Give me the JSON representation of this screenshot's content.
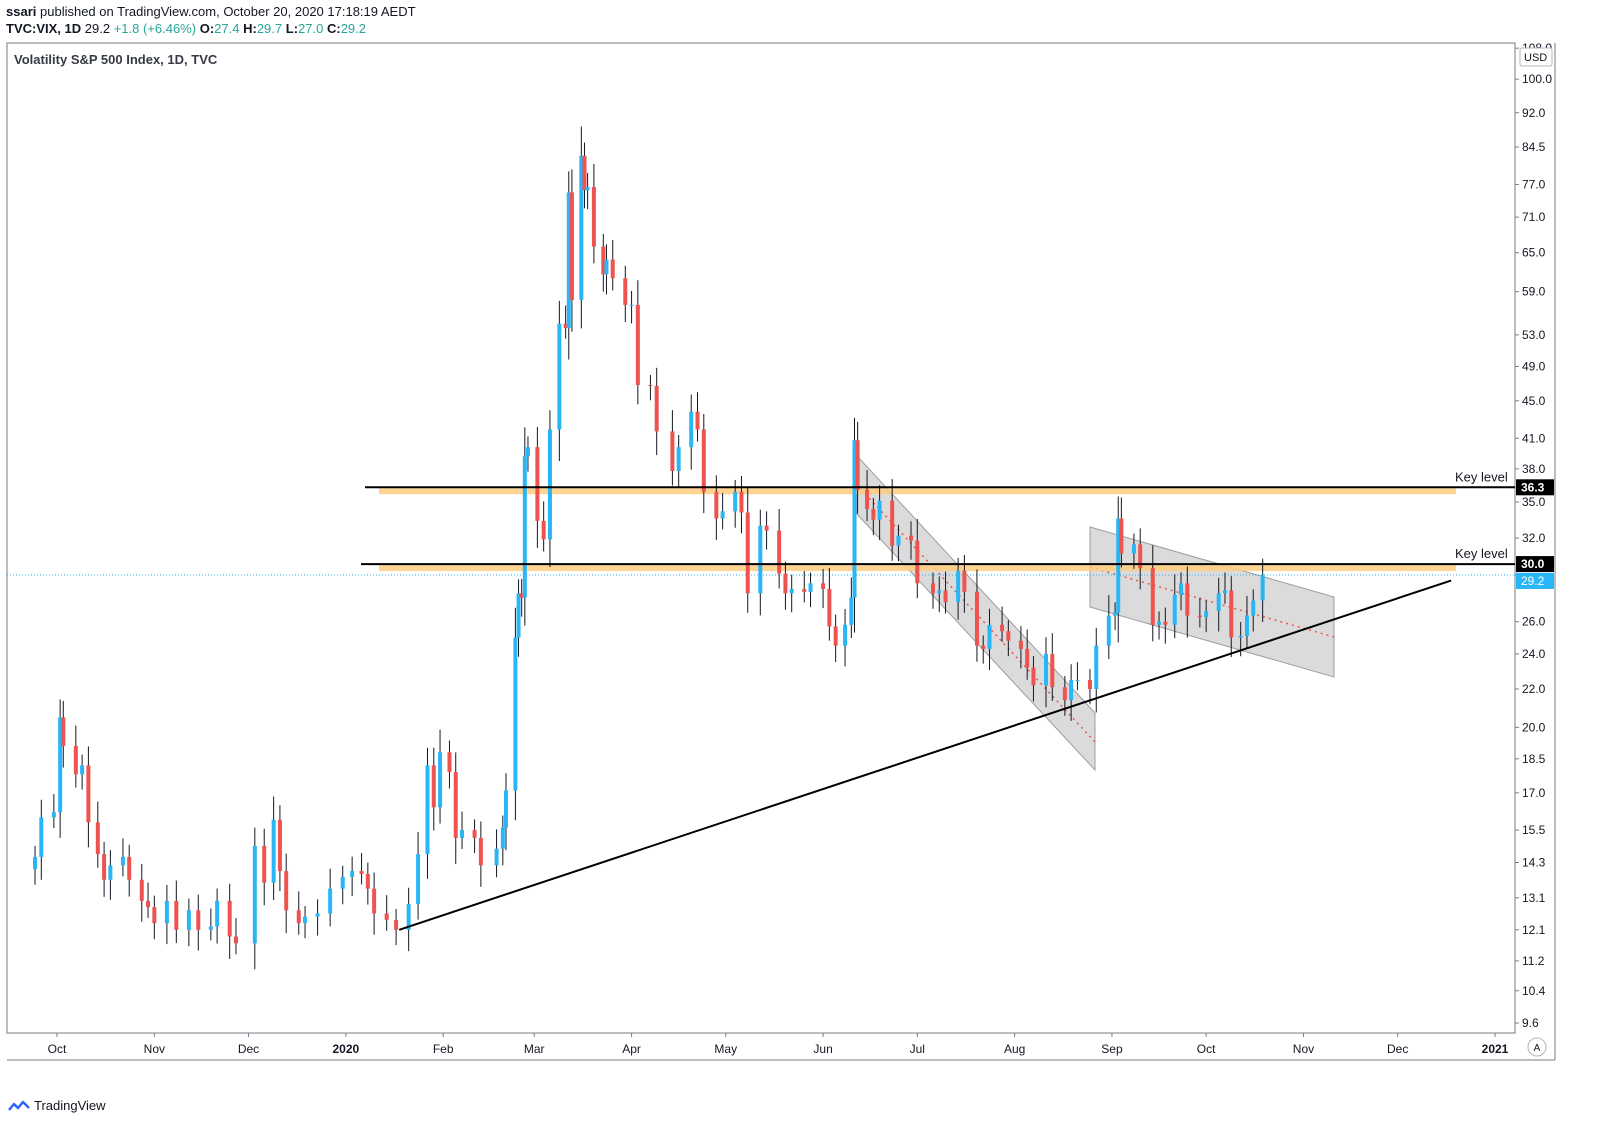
{
  "header": {
    "publisher": "ssari",
    "published_text": "published on TradingView.com, October 20, 2020 17:18:19 AEDT",
    "symbol": "TVC:VIX, 1D",
    "last": "29.2",
    "change": "+1.8 (+6.46%)",
    "o_label": "O:",
    "o_value": "27.4",
    "h_label": "H:",
    "h_value": "29.7",
    "l_label": "L:",
    "l_value": "27.0",
    "c_label": "C:",
    "c_value": "29.2"
  },
  "pane_title": "Volatility S&P 500 Index, 1D, TVC",
  "footer": {
    "brand": "TradingView"
  },
  "colors": {
    "up": "#29b6f6",
    "down": "#ef5350",
    "key_band": "#ffcc80",
    "channel": "#bdbdbd",
    "price_tag": "#29b6f6"
  },
  "chart_data": {
    "type": "candlestick",
    "scale": "log",
    "currency": "USD",
    "y_ticks": [
      9.6,
      10.4,
      11.2,
      12.1,
      13.1,
      14.3,
      15.5,
      17.0,
      18.5,
      20.0,
      22.0,
      24.0,
      26.0,
      29.2,
      32.0,
      35.0,
      38.0,
      41.0,
      45.0,
      49.0,
      53.0,
      59.0,
      65.0,
      71.0,
      77.0,
      84.5,
      92.0,
      100.0,
      108.0
    ],
    "y_tick_labels": [
      "9.6",
      "10.4",
      "11.2",
      "12.1",
      "13.1",
      "14.3",
      "15.5",
      "17.0",
      "18.5",
      "20.0",
      "22.0",
      "24.0",
      "26.0",
      "29.2",
      "32.0",
      "35.0",
      "38.0",
      "41.0",
      "45.0",
      "49.0",
      "53.0",
      "59.0",
      "65.0",
      "71.0",
      "77.0",
      "84.5",
      "92.0",
      "100.0",
      "108.0"
    ],
    "x_labels": [
      "Oct",
      "Nov",
      "Dec",
      "2020",
      "Feb",
      "Mar",
      "Apr",
      "May",
      "Jun",
      "Jul",
      "Aug",
      "Sep",
      "Oct",
      "Nov",
      "Dec",
      "2021"
    ],
    "x_label_days": [
      0,
      31,
      61,
      92,
      123,
      152,
      183,
      213,
      244,
      274,
      305,
      336,
      366,
      397,
      427,
      458
    ],
    "key_levels": [
      {
        "label": "Key level",
        "value": 36.3,
        "tag": "36.3"
      },
      {
        "label": "Key level",
        "value": 30.0,
        "tag": "30.0"
      }
    ],
    "last_price": {
      "value": 29.2,
      "tag": "29.2"
    },
    "trendline": [
      {
        "date": "2020-01-18",
        "y": 12.1
      },
      {
        "date": "2020-12-18",
        "y": 28.8
      }
    ],
    "closes": [
      [
        "2019-09-24",
        14.5
      ],
      [
        "2019-09-26",
        16.0
      ],
      [
        "2019-09-30",
        16.2
      ],
      [
        "2019-10-02",
        20.5
      ],
      [
        "2019-10-03",
        19.1
      ],
      [
        "2019-10-07",
        17.8
      ],
      [
        "2019-10-09",
        18.2
      ],
      [
        "2019-10-11",
        15.8
      ],
      [
        "2019-10-14",
        14.6
      ],
      [
        "2019-10-16",
        13.7
      ],
      [
        "2019-10-18",
        14.2
      ],
      [
        "2019-10-22",
        14.5
      ],
      [
        "2019-10-24",
        13.7
      ],
      [
        "2019-10-28",
        13.0
      ],
      [
        "2019-10-30",
        12.8
      ],
      [
        "2019-11-01",
        12.3
      ],
      [
        "2019-11-05",
        13.0
      ],
      [
        "2019-11-08",
        12.1
      ],
      [
        "2019-11-12",
        12.7
      ],
      [
        "2019-11-15",
        12.1
      ],
      [
        "2019-11-19",
        12.2
      ],
      [
        "2019-11-21",
        13.0
      ],
      [
        "2019-11-25",
        11.9
      ],
      [
        "2019-11-27",
        11.7
      ],
      [
        "2019-12-03",
        14.9
      ],
      [
        "2019-12-06",
        13.6
      ],
      [
        "2019-12-09",
        15.9
      ],
      [
        "2019-12-11",
        14.0
      ],
      [
        "2019-12-13",
        12.7
      ],
      [
        "2019-12-17",
        12.3
      ],
      [
        "2019-12-19",
        12.5
      ],
      [
        "2019-12-23",
        12.6
      ],
      [
        "2019-12-27",
        13.4
      ],
      [
        "2019-12-31",
        13.8
      ],
      [
        "2020-01-03",
        14.0
      ],
      [
        "2020-01-06",
        13.9
      ],
      [
        "2020-01-08",
        13.4
      ],
      [
        "2020-01-10",
        12.6
      ],
      [
        "2020-01-14",
        12.4
      ],
      [
        "2020-01-17",
        12.1
      ],
      [
        "2020-01-21",
        12.9
      ],
      [
        "2020-01-24",
        14.6
      ],
      [
        "2020-01-27",
        18.2
      ],
      [
        "2020-01-29",
        16.4
      ],
      [
        "2020-01-31",
        18.8
      ],
      [
        "2020-02-03",
        17.9
      ],
      [
        "2020-02-05",
        15.2
      ],
      [
        "2020-02-07",
        15.5
      ],
      [
        "2020-02-11",
        15.2
      ],
      [
        "2020-02-13",
        14.2
      ],
      [
        "2020-02-18",
        14.8
      ],
      [
        "2020-02-20",
        15.6
      ],
      [
        "2020-02-21",
        17.1
      ],
      [
        "2020-02-24",
        25.0
      ],
      [
        "2020-02-25",
        27.9
      ],
      [
        "2020-02-26",
        27.6
      ],
      [
        "2020-02-27",
        39.2
      ],
      [
        "2020-02-28",
        40.1
      ],
      [
        "2020-03-02",
        33.4
      ],
      [
        "2020-03-04",
        31.9
      ],
      [
        "2020-03-06",
        41.9
      ],
      [
        "2020-03-09",
        54.5
      ],
      [
        "2020-03-11",
        53.9
      ],
      [
        "2020-03-12",
        75.5
      ],
      [
        "2020-03-13",
        57.8
      ],
      [
        "2020-03-16",
        82.7
      ],
      [
        "2020-03-17",
        75.9
      ],
      [
        "2020-03-18",
        76.5
      ],
      [
        "2020-03-20",
        66.0
      ],
      [
        "2020-03-23",
        61.6
      ],
      [
        "2020-03-24",
        63.9
      ],
      [
        "2020-03-26",
        61.0
      ],
      [
        "2020-03-30",
        57.1
      ],
      [
        "2020-04-01",
        57.1
      ],
      [
        "2020-04-03",
        46.8
      ],
      [
        "2020-04-07",
        46.7
      ],
      [
        "2020-04-09",
        41.7
      ],
      [
        "2020-04-14",
        37.8
      ],
      [
        "2020-04-16",
        40.1
      ],
      [
        "2020-04-20",
        43.8
      ],
      [
        "2020-04-22",
        41.9
      ],
      [
        "2020-04-24",
        35.9
      ],
      [
        "2020-04-28",
        33.6
      ],
      [
        "2020-04-30",
        34.2
      ],
      [
        "2020-05-04",
        35.9
      ],
      [
        "2020-05-06",
        34.1
      ],
      [
        "2020-05-08",
        27.9
      ],
      [
        "2020-05-12",
        33.0
      ],
      [
        "2020-05-14",
        32.6
      ],
      [
        "2020-05-18",
        29.3
      ],
      [
        "2020-05-20",
        27.9
      ],
      [
        "2020-05-22",
        28.2
      ],
      [
        "2020-05-26",
        28.0
      ],
      [
        "2020-05-28",
        28.6
      ],
      [
        "2020-06-01",
        28.2
      ],
      [
        "2020-06-03",
        25.7
      ],
      [
        "2020-06-05",
        24.5
      ],
      [
        "2020-06-08",
        25.8
      ],
      [
        "2020-06-10",
        27.6
      ],
      [
        "2020-06-11",
        40.8
      ],
      [
        "2020-06-12",
        36.1
      ],
      [
        "2020-06-15",
        34.4
      ],
      [
        "2020-06-17",
        33.5
      ],
      [
        "2020-06-19",
        35.1
      ],
      [
        "2020-06-23",
        31.4
      ],
      [
        "2020-06-25",
        32.2
      ],
      [
        "2020-06-29",
        31.8
      ],
      [
        "2020-07-01",
        28.6
      ],
      [
        "2020-07-06",
        27.9
      ],
      [
        "2020-07-08",
        28.1
      ],
      [
        "2020-07-10",
        27.3
      ],
      [
        "2020-07-14",
        29.5
      ],
      [
        "2020-07-16",
        28.0
      ],
      [
        "2020-07-20",
        24.5
      ],
      [
        "2020-07-22",
        24.3
      ],
      [
        "2020-07-24",
        25.8
      ],
      [
        "2020-07-28",
        25.4
      ],
      [
        "2020-07-30",
        24.8
      ],
      [
        "2020-08-03",
        24.3
      ],
      [
        "2020-08-05",
        23.2
      ],
      [
        "2020-08-07",
        22.2
      ],
      [
        "2020-08-11",
        24.0
      ],
      [
        "2020-08-13",
        22.1
      ],
      [
        "2020-08-17",
        21.4
      ],
      [
        "2020-08-19",
        22.5
      ],
      [
        "2020-08-21",
        22.5
      ],
      [
        "2020-08-25",
        22.0
      ],
      [
        "2020-08-27",
        24.5
      ],
      [
        "2020-08-31",
        26.4
      ],
      [
        "2020-09-02",
        26.6
      ],
      [
        "2020-09-03",
        33.6
      ],
      [
        "2020-09-04",
        30.8
      ],
      [
        "2020-09-08",
        31.5
      ],
      [
        "2020-09-10",
        29.7
      ],
      [
        "2020-09-14",
        25.8
      ],
      [
        "2020-09-16",
        26.0
      ],
      [
        "2020-09-18",
        25.8
      ],
      [
        "2020-09-21",
        27.8
      ],
      [
        "2020-09-23",
        28.6
      ],
      [
        "2020-09-25",
        26.4
      ],
      [
        "2020-09-29",
        26.3
      ],
      [
        "2020-10-01",
        26.7
      ],
      [
        "2020-10-05",
        27.9
      ],
      [
        "2020-10-07",
        28.1
      ],
      [
        "2020-10-09",
        25.0
      ],
      [
        "2020-10-12",
        25.1
      ],
      [
        "2020-10-14",
        26.4
      ],
      [
        "2020-10-16",
        27.4
      ],
      [
        "2020-10-19",
        29.2
      ]
    ]
  }
}
